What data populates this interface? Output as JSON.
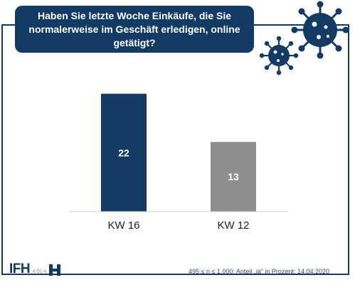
{
  "header": {
    "title": "Haben Sie letzte Woche Einkäufe, die Sie normalerweise im Geschäft erledigen, online getätigt?"
  },
  "chart_data": {
    "type": "bar",
    "categories": [
      "KW 16",
      "KW 12"
    ],
    "values": [
      22,
      13
    ],
    "value_labels": [
      "22",
      "13"
    ],
    "bar_colors": [
      "#123a63",
      "#8e8e91"
    ],
    "title": "Haben Sie letzte Woche Einkäufe, die Sie normalerweise im Geschäft erledigen, online getätigt?",
    "xlabel": "",
    "ylabel": "",
    "ylim": [
      0,
      25
    ],
    "grid": false,
    "legend": "none"
  },
  "footer": {
    "note": "495 ≤ n ≤ 1.000; Anteil „ja“ in Prozent; 14.04.2020",
    "logo_text": "IFH",
    "logo_city": "KÖLN"
  },
  "colors": {
    "brand_navy": "#123a63",
    "bar_grey": "#8e8e91",
    "virus": "#123a63"
  },
  "icons": [
    "virus-icon-large",
    "virus-icon-small",
    "ifh-logo-mark-icon"
  ]
}
